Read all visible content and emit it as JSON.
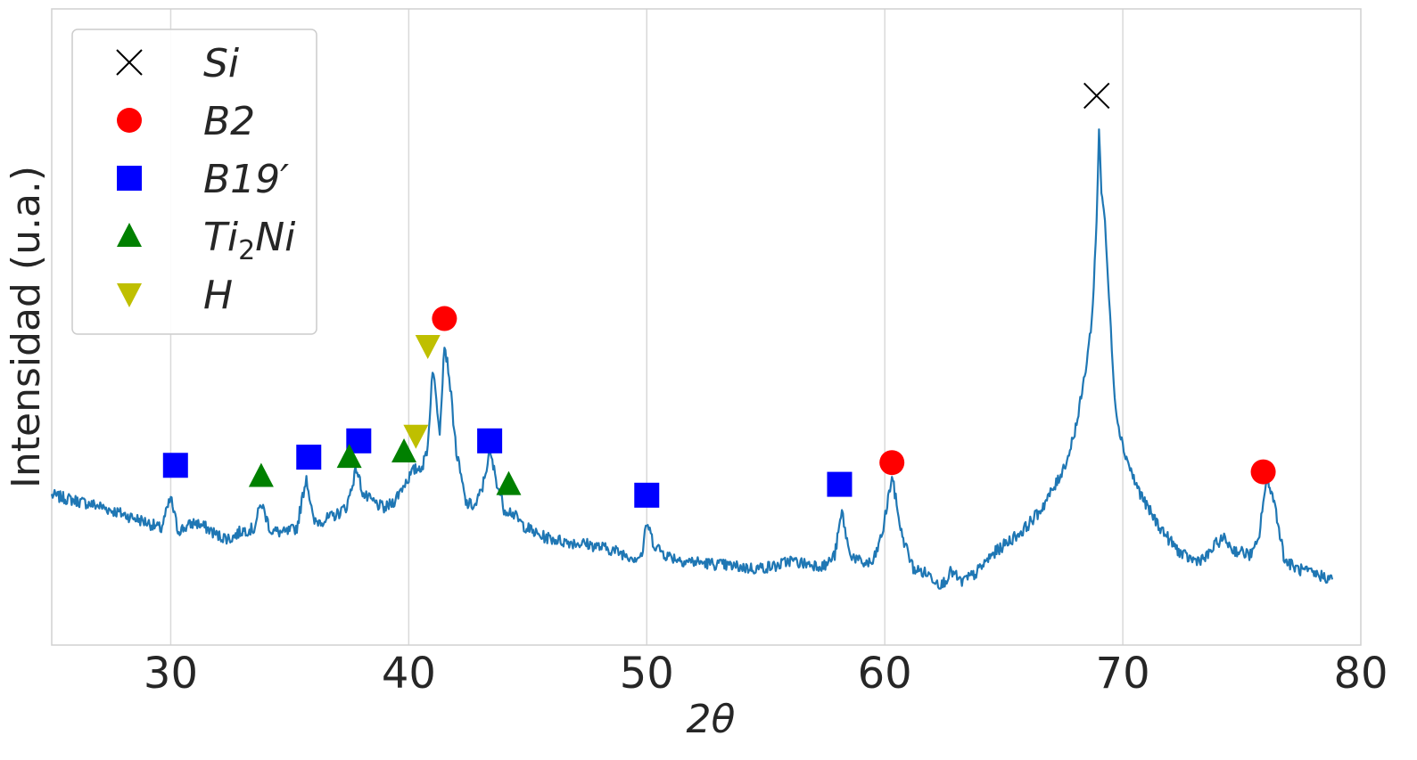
{
  "chart_data": {
    "type": "line",
    "title": "",
    "xlabel": "2θ",
    "ylabel": "Intensidad (u.a.)",
    "xlim": [
      25,
      80
    ],
    "ylim": [
      0,
      100
    ],
    "xticks": [
      30,
      40,
      50,
      60,
      70,
      80
    ],
    "x_tick_labels": [
      "30",
      "40",
      "50",
      "60",
      "70",
      "80"
    ],
    "y_ticks_shown": false,
    "grid": "vertical",
    "line_color": "#1f77b4",
    "legend_position": "top-left",
    "series": [
      {
        "x": [
          25.0,
          26.0,
          27.0,
          28.0,
          29.0,
          29.6,
          30.0,
          30.3,
          30.6,
          31.0,
          31.5,
          32.0,
          32.5,
          33.0,
          33.5,
          33.8,
          34.2,
          34.8,
          35.3,
          35.7,
          36.0,
          36.5,
          37.0,
          37.4,
          37.8,
          38.1,
          38.6,
          39.0,
          39.4,
          39.8,
          40.2,
          40.6,
          40.8,
          41.0,
          41.2,
          41.3,
          41.5,
          41.7,
          42.0,
          42.4,
          42.8,
          43.1,
          43.4,
          43.7,
          44.0,
          44.3,
          44.8,
          45.5,
          46.5,
          47.5,
          48.5,
          49.5,
          49.8,
          50.0,
          50.3,
          50.8,
          51.5,
          52.5,
          53.5,
          54.5,
          55.5,
          56.0,
          56.5,
          57.5,
          57.9,
          58.2,
          58.5,
          59.0,
          59.5,
          59.9,
          60.3,
          60.7,
          61.2,
          61.8,
          62.4,
          62.8,
          63.2,
          63.8,
          64.5,
          65.2,
          65.8,
          66.5,
          67.2,
          67.7,
          68.1,
          68.4,
          68.7,
          68.9,
          69.0,
          69.1,
          69.2,
          69.3,
          69.5,
          69.7,
          70.0,
          70.5,
          71.0,
          71.5,
          72.0,
          72.5,
          73.0,
          73.5,
          74.0,
          74.3,
          74.6,
          75.0,
          75.4,
          75.7,
          75.9,
          76.1,
          76.4,
          76.8,
          77.3,
          78.0,
          78.5,
          78.8
        ],
        "y": [
          22.0,
          21.0,
          20.0,
          18.5,
          17.0,
          15.8,
          21.5,
          15.5,
          16.0,
          17.0,
          16.0,
          14.5,
          14.0,
          15.5,
          15.8,
          20.6,
          15.5,
          15.0,
          16.0,
          25.5,
          17.0,
          17.5,
          18.5,
          20.0,
          27.0,
          22.0,
          20.5,
          19.5,
          21.0,
          24.0,
          26.5,
          27.5,
          31.0,
          45.5,
          38.0,
          34.0,
          50.0,
          44.0,
          30.0,
          20.5,
          20.0,
          23.5,
          30.0,
          24.5,
          19.5,
          19.0,
          16.5,
          14.5,
          13.5,
          13.0,
          12.0,
          10.5,
          11.0,
          17.0,
          13.0,
          11.0,
          10.0,
          9.5,
          9.0,
          8.5,
          9.0,
          10.0,
          9.5,
          9.0,
          11.0,
          19.0,
          11.5,
          9.5,
          9.5,
          15.0,
          25.5,
          15.0,
          8.5,
          7.5,
          5.5,
          8.0,
          6.0,
          7.5,
          11.0,
          13.5,
          15.5,
          19.0,
          24.0,
          29.0,
          36.0,
          44.0,
          54.0,
          72.0,
          90.0,
          78.0,
          75.0,
          68.0,
          52.0,
          38.0,
          31.0,
          24.5,
          20.0,
          16.5,
          13.5,
          11.0,
          10.0,
          10.5,
          13.5,
          14.0,
          12.0,
          11.5,
          11.0,
          13.5,
          21.0,
          25.0,
          20.0,
          10.0,
          8.5,
          7.5,
          7.0,
          6.5
        ]
      }
    ],
    "legend": [
      {
        "marker": "x",
        "color": "#000000",
        "label": "Si"
      },
      {
        "marker": "circle",
        "color": "#ff0000",
        "label": "B2"
      },
      {
        "marker": "square",
        "color": "#0000ff",
        "label": "B19′"
      },
      {
        "marker": "triangle-up",
        "color": "#008000",
        "label": "Ti",
        "label_sub": "2",
        "label_after": "Ni"
      },
      {
        "marker": "triangle-down",
        "color": "#bfbf00",
        "label": "H"
      }
    ],
    "annotations": [
      {
        "phase": "Si",
        "marker": "x",
        "color": "#000000",
        "points": [
          [
            68.9,
            95.5
          ]
        ]
      },
      {
        "phase": "B2",
        "marker": "circle",
        "color": "#ff0000",
        "points": [
          [
            41.5,
            54.5
          ],
          [
            60.3,
            28.0
          ],
          [
            75.9,
            26.3
          ]
        ]
      },
      {
        "phase": "B19′",
        "marker": "square",
        "color": "#0000ff",
        "points": [
          [
            30.2,
            27.5
          ],
          [
            35.8,
            29.0
          ],
          [
            37.9,
            32.0
          ],
          [
            43.4,
            32.0
          ],
          [
            50.0,
            22.0
          ],
          [
            58.1,
            24.0
          ]
        ]
      },
      {
        "phase": "Ti2Ni",
        "marker": "triangle-up",
        "color": "#008000",
        "points": [
          [
            33.8,
            25.5
          ],
          [
            37.5,
            29.0
          ],
          [
            39.8,
            30.0
          ],
          [
            44.2,
            24.0
          ]
        ]
      },
      {
        "phase": "H",
        "marker": "triangle-down",
        "color": "#bfbf00",
        "points": [
          [
            40.3,
            33.0
          ],
          [
            40.8,
            49.5
          ]
        ]
      }
    ]
  }
}
